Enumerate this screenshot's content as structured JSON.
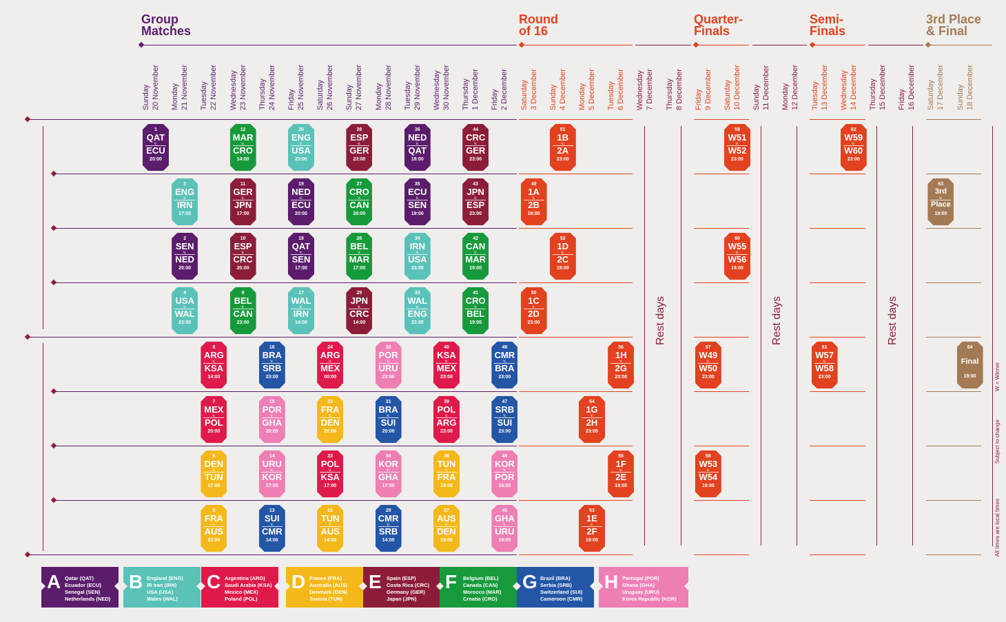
{
  "stages": [
    {
      "label": "Group\nMatches",
      "color": "#5b1d6b"
    },
    {
      "label": "Round\nof 16",
      "color": "#e2421f"
    },
    {
      "label": "Quarter-\nFinals",
      "color": "#e2421f"
    },
    {
      "label": "Semi-\nFinals",
      "color": "#e2421f"
    },
    {
      "label": "3rd Place\n& Final",
      "color": "#a37a54"
    }
  ],
  "days": [
    {
      "d": "Sunday",
      "m": "20 November"
    },
    {
      "d": "Monday",
      "m": "21 November"
    },
    {
      "d": "Tuesday",
      "m": "22 November"
    },
    {
      "d": "Wednesday",
      "m": "23 November"
    },
    {
      "d": "Thursday",
      "m": "24 November"
    },
    {
      "d": "Friday",
      "m": "25 November"
    },
    {
      "d": "Saturday",
      "m": "26 November"
    },
    {
      "d": "Sunday",
      "m": "27 November"
    },
    {
      "d": "Monday",
      "m": "28 November"
    },
    {
      "d": "Tuesday",
      "m": "29 November"
    },
    {
      "d": "Wednesday",
      "m": "30 November"
    },
    {
      "d": "Thursday",
      "m": "1 December"
    },
    {
      "d": "Friday",
      "m": "2 December"
    },
    {
      "d": "Saturday",
      "m": "3 December"
    },
    {
      "d": "Sunday",
      "m": "4 December"
    },
    {
      "d": "Monday",
      "m": "5 December"
    },
    {
      "d": "Tuesday",
      "m": "6 December"
    },
    {
      "d": "Wednesday",
      "m": "7 December"
    },
    {
      "d": "Thursday",
      "m": "8 December"
    },
    {
      "d": "Friday",
      "m": "9 December"
    },
    {
      "d": "Saturday",
      "m": "10 December"
    },
    {
      "d": "Sunday",
      "m": "11 December"
    },
    {
      "d": "Monday",
      "m": "12 December"
    },
    {
      "d": "Tuesday",
      "m": "13 December"
    },
    {
      "d": "Wednesday",
      "m": "14 December"
    },
    {
      "d": "Thursday",
      "m": "15 December"
    },
    {
      "d": "Friday",
      "m": "16 December"
    },
    {
      "d": "Saturday",
      "m": "17 December"
    },
    {
      "d": "Sunday",
      "m": "18 December"
    }
  ],
  "rest_label": "Rest days",
  "notes": [
    "W = Winner",
    "Subject to change",
    "All times are local times"
  ],
  "colors": {
    "A": "#5b1d6b",
    "B": "#5ac2b8",
    "C": "#e0194b",
    "D": "#f5b81a",
    "E": "#8c1d3a",
    "F": "#179a3c",
    "G": "#2456a6",
    "H": "#ee7fb4",
    "R": "#e2421f",
    "P": "#a37a54"
  },
  "matches": [
    {
      "n": "1",
      "a": "QAT",
      "b": "ECU",
      "t": "20:00",
      "g": "A"
    },
    {
      "n": "12",
      "a": "MAR",
      "b": "CRO",
      "t": "14:00",
      "g": "F"
    },
    {
      "n": "20",
      "a": "ENG",
      "b": "USA",
      "t": "23:00",
      "g": "B"
    },
    {
      "n": "28",
      "a": "ESP",
      "b": "GER",
      "t": "23:00",
      "g": "E"
    },
    {
      "n": "36",
      "a": "NED",
      "b": "QAT",
      "t": "18:00",
      "g": "A"
    },
    {
      "n": "44",
      "a": "CRC",
      "b": "GER",
      "t": "23:00",
      "g": "E"
    },
    {
      "n": "51",
      "a": "1B",
      "b": "2A",
      "t": "23:00",
      "g": "R"
    },
    {
      "n": "59",
      "a": "W51",
      "b": "W52",
      "t": "23:00",
      "g": "R"
    },
    {
      "n": "62",
      "a": "W59",
      "b": "W60",
      "t": "23:00",
      "g": "R"
    },
    {
      "n": "3",
      "a": "ENG",
      "b": "IRN",
      "t": "17:00",
      "g": "B"
    },
    {
      "n": "11",
      "a": "GER",
      "b": "JPN",
      "t": "17:00",
      "g": "E"
    },
    {
      "n": "19",
      "a": "NED",
      "b": "ECU",
      "t": "20:00",
      "g": "A"
    },
    {
      "n": "27",
      "a": "CRO",
      "b": "CAN",
      "t": "20:00",
      "g": "F"
    },
    {
      "n": "35",
      "a": "ECU",
      "b": "SEN",
      "t": "19:00",
      "g": "A"
    },
    {
      "n": "43",
      "a": "JPN",
      "b": "ESP",
      "t": "23:00",
      "g": "E"
    },
    {
      "n": "49",
      "a": "1A",
      "b": "2B",
      "t": "19:00",
      "g": "R"
    },
    {
      "n": "63",
      "a": "3rd",
      "b": "Place",
      "t": "19:00",
      "g": "P"
    },
    {
      "n": "2",
      "a": "SEN",
      "b": "NED",
      "t": "20:00",
      "g": "A"
    },
    {
      "n": "10",
      "a": "ESP",
      "b": "CRC",
      "t": "20:00",
      "g": "E"
    },
    {
      "n": "18",
      "a": "QAT",
      "b": "SEN",
      "t": "17:00",
      "g": "A"
    },
    {
      "n": "26",
      "a": "BEL",
      "b": "MAR",
      "t": "17:00",
      "g": "F"
    },
    {
      "n": "34",
      "a": "IRN",
      "b": "USA",
      "t": "23:00",
      "g": "B"
    },
    {
      "n": "42",
      "a": "CAN",
      "b": "MAR",
      "t": "19:00",
      "g": "F"
    },
    {
      "n": "52",
      "a": "1D",
      "b": "2C",
      "t": "19:00",
      "g": "R"
    },
    {
      "n": "60",
      "a": "W55",
      "b": "W56",
      "t": "19:00",
      "g": "R"
    },
    {
      "n": "4",
      "a": "USA",
      "b": "WAL",
      "t": "23:00",
      "g": "B"
    },
    {
      "n": "9",
      "a": "BEL",
      "b": "CAN",
      "t": "23:00",
      "g": "F"
    },
    {
      "n": "17",
      "a": "WAL",
      "b": "IRN",
      "t": "14:00",
      "g": "B"
    },
    {
      "n": "25",
      "a": "JPN",
      "b": "CRC",
      "t": "14:00",
      "g": "E"
    },
    {
      "n": "33",
      "a": "WAL",
      "b": "ENG",
      "t": "23:00",
      "g": "B"
    },
    {
      "n": "41",
      "a": "CRO",
      "b": "BEL",
      "t": "19:00",
      "g": "F"
    },
    {
      "n": "50",
      "a": "1C",
      "b": "2D",
      "t": "23:00",
      "g": "R"
    },
    {
      "n": "8",
      "a": "ARG",
      "b": "KSA",
      "t": "14:00",
      "g": "C"
    },
    {
      "n": "16",
      "a": "BRA",
      "b": "SRB",
      "t": "23:00",
      "g": "G"
    },
    {
      "n": "24",
      "a": "ARG",
      "b": "MEX",
      "t": "00:00",
      "g": "C"
    },
    {
      "n": "32",
      "a": "POR",
      "b": "URU",
      "t": "23:00",
      "g": "H"
    },
    {
      "n": "40",
      "a": "KSA",
      "b": "MEX",
      "t": "23:00",
      "g": "C"
    },
    {
      "n": "48",
      "a": "CMR",
      "b": "BRA",
      "t": "23:00",
      "g": "G"
    },
    {
      "n": "56",
      "a": "1H",
      "b": "2G",
      "t": "23:00",
      "g": "R"
    },
    {
      "n": "57",
      "a": "W49",
      "b": "W50",
      "t": "23:00",
      "g": "R"
    },
    {
      "n": "61",
      "a": "W57",
      "b": "W58",
      "t": "23:00",
      "g": "R"
    },
    {
      "n": "64",
      "a": "Final",
      "b": "",
      "t": "19:00",
      "g": "P"
    },
    {
      "n": "7",
      "a": "MEX",
      "b": "POL",
      "t": "20:00",
      "g": "C"
    },
    {
      "n": "15",
      "a": "POR",
      "b": "GHA",
      "t": "20:00",
      "g": "H"
    },
    {
      "n": "23",
      "a": "FRA",
      "b": "DEN",
      "t": "20:00",
      "g": "D"
    },
    {
      "n": "31",
      "a": "BRA",
      "b": "SUI",
      "t": "20:00",
      "g": "G"
    },
    {
      "n": "39",
      "a": "POL",
      "b": "ARG",
      "t": "23:00",
      "g": "C"
    },
    {
      "n": "47",
      "a": "SRB",
      "b": "SUI",
      "t": "23:00",
      "g": "G"
    },
    {
      "n": "54",
      "a": "1G",
      "b": "2H",
      "t": "23:00",
      "g": "R"
    },
    {
      "n": "6",
      "a": "DEN",
      "b": "TUN",
      "t": "17:00",
      "g": "D"
    },
    {
      "n": "14",
      "a": "URU",
      "b": "KOR",
      "t": "17:00",
      "g": "H"
    },
    {
      "n": "22",
      "a": "POL",
      "b": "KSA",
      "t": "17:00",
      "g": "C"
    },
    {
      "n": "30",
      "a": "KOR",
      "b": "GHA",
      "t": "17:00",
      "g": "H"
    },
    {
      "n": "38",
      "a": "TUN",
      "b": "FRA",
      "t": "19:00",
      "g": "D"
    },
    {
      "n": "46",
      "a": "KOR",
      "b": "POR",
      "t": "19:00",
      "g": "H"
    },
    {
      "n": "55",
      "a": "1F",
      "b": "2E",
      "t": "19:00",
      "g": "R"
    },
    {
      "n": "58",
      "a": "W53",
      "b": "W54",
      "t": "19:00",
      "g": "R"
    },
    {
      "n": "5",
      "a": "FRA",
      "b": "AUS",
      "t": "23:00",
      "g": "D"
    },
    {
      "n": "13",
      "a": "SUI",
      "b": "CMR",
      "t": "14:00",
      "g": "G"
    },
    {
      "n": "21",
      "a": "TUN",
      "b": "AUS",
      "t": "14:00",
      "g": "D"
    },
    {
      "n": "29",
      "a": "CMR",
      "b": "SRB",
      "t": "14:00",
      "g": "G"
    },
    {
      "n": "37",
      "a": "AUS",
      "b": "DEN",
      "t": "19:00",
      "g": "D"
    },
    {
      "n": "45",
      "a": "GHA",
      "b": "URU",
      "t": "19:00",
      "g": "H"
    },
    {
      "n": "53",
      "a": "1E",
      "b": "2F",
      "t": "19:00",
      "g": "R"
    }
  ],
  "groups": [
    {
      "letter": "A",
      "color": "#5b1d6b",
      "teams": [
        "Qatar (QAT)",
        "Ecuador (ECU)",
        "Senegal (SEN)",
        "Netherlands (NED)"
      ]
    },
    {
      "letter": "B",
      "color": "#5ac2b8",
      "teams": [
        "England (ENG)",
        "IR Iran (IRN)",
        "USA (USA)",
        "Wales (WAL)"
      ]
    },
    {
      "letter": "C",
      "color": "#e0194b",
      "teams": [
        "Argentina (ARG)",
        "Saudi Arabia (KSA)",
        "Mexico (MEX)",
        "Poland (POL)"
      ]
    },
    {
      "letter": "D",
      "color": "#f5b81a",
      "teams": [
        "France (FRA)",
        "Australia (AUS)",
        "Denmark (DEN)",
        "Tunisia (TUN)"
      ]
    },
    {
      "letter": "E",
      "color": "#8c1d3a",
      "teams": [
        "Spain (ESP)",
        "Costa Rica (CRC)",
        "Germany (GER)",
        "Japan (JPN)"
      ]
    },
    {
      "letter": "F",
      "color": "#179a3c",
      "teams": [
        "Belgium (BEL)",
        "Canada (CAN)",
        "Morocco (MAR)",
        "Croatia (CRO)"
      ]
    },
    {
      "letter": "G",
      "color": "#2456a6",
      "teams": [
        "Brazil (BRA)",
        "Serbia (SRB)",
        "Switzerland (SUI)",
        "Cameroon (CMR)"
      ]
    },
    {
      "letter": "H",
      "color": "#ee7fb4",
      "teams": [
        "Portugal (POR)",
        "Ghana (GHA)",
        "Uruguay (URU)",
        "Korea Republic (KOR)"
      ]
    }
  ]
}
